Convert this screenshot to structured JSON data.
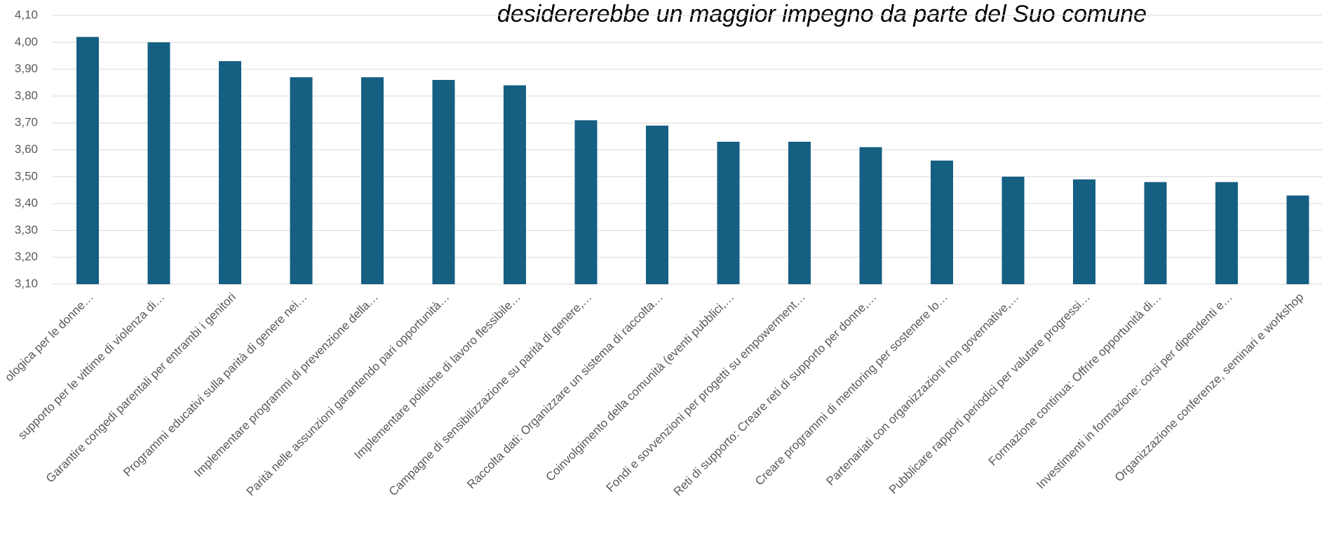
{
  "chart_data": {
    "type": "bar",
    "title": "desidererebbe un maggior impegno da parte del Suo comune",
    "categories": [
      "ologica per le donne…",
      "supporto per le vittime di violenza di…",
      "Garantire congedi parentali per entrambi i genitori",
      "Programmi educativi sulla parità di genere nei…",
      "Implementare programmi di prevenzione della…",
      "Parità nelle assunzioni garantendo pari opportunità…",
      "Implementare politiche di lavoro flessibile…",
      "Campagne di sensibilizzazione su parità di genere,…",
      "Raccolta dati: Organizzare un sistema di raccolta…",
      "Coinvolgimento della comunità (eventi pubblici,…",
      "Fondi e sovvenzioni per progetti su empowerment…",
      "Reti di supporto: Creare reti di supporto per donne,…",
      "Creare programmi di mentoring per sostenere lo…",
      "Partenariati con organizzazioni non governative,…",
      "Pubblicare rapporti periodici per valutare progressi…",
      "Formazione continua: Offrire opportunità di…",
      "Investimenti in formazione: corsi per dipendenti e…",
      "Organizzazione conferenze, seminari e workshop"
    ],
    "values": [
      4.02,
      4.0,
      3.93,
      3.87,
      3.87,
      3.86,
      3.84,
      3.71,
      3.69,
      3.63,
      3.63,
      3.61,
      3.56,
      3.5,
      3.49,
      3.48,
      3.48,
      3.43
    ],
    "color": "#155f83",
    "ylim": [
      3.1,
      4.1
    ],
    "yticks": [
      {
        "value": 3.1,
        "label": "3,10"
      },
      {
        "value": 3.2,
        "label": "3,20"
      },
      {
        "value": 3.3,
        "label": "3,30"
      },
      {
        "value": 3.4,
        "label": "3,40"
      },
      {
        "value": 3.5,
        "label": "3,50"
      },
      {
        "value": 3.6,
        "label": "3,60"
      },
      {
        "value": 3.7,
        "label": "3,70"
      },
      {
        "value": 3.8,
        "label": "3,80"
      },
      {
        "value": 3.9,
        "label": "3,90"
      },
      {
        "value": 4.0,
        "label": "4,00"
      },
      {
        "value": 4.1,
        "label": "4,10"
      }
    ],
    "grid": true
  }
}
